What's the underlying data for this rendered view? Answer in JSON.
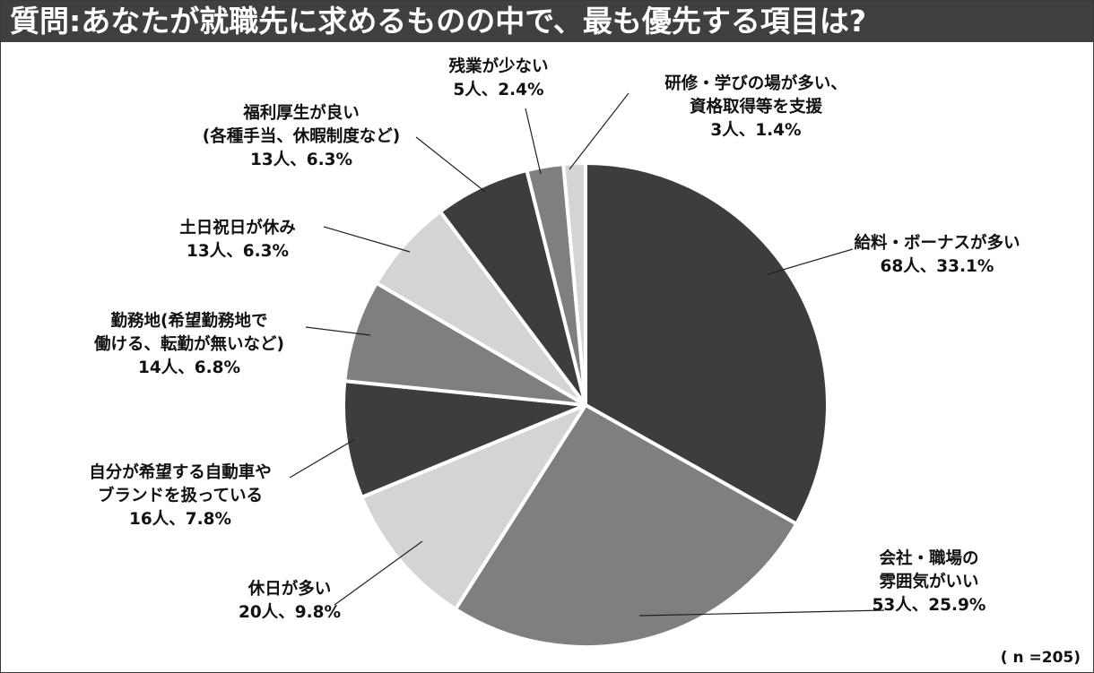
{
  "title": "質問:あなたが就職先に求めるものの中で、最も優先する項目は?",
  "note": "( n =205)",
  "colors": {
    "dark": "#3d3d3d",
    "medium": "#7f7f7f",
    "light": "#d4d4d4",
    "title_bg": "#404040"
  },
  "chart_data": {
    "type": "pie",
    "title": "質問:あなたが就職先に求めるものの中で、最も優先する項目は?",
    "n": 205,
    "slices": [
      {
        "label_lines": [
          "給料・ボーナスが多い"
        ],
        "value_text": "68人、33.1%",
        "count": 68,
        "percent": 33.1,
        "shade": "dark"
      },
      {
        "label_lines": [
          "会社・職場の",
          "雰囲気がいい"
        ],
        "value_text": "53人、25.9%",
        "count": 53,
        "percent": 25.9,
        "shade": "medium"
      },
      {
        "label_lines": [
          "休日が多い"
        ],
        "value_text": "20人、9.8%",
        "count": 20,
        "percent": 9.8,
        "shade": "light"
      },
      {
        "label_lines": [
          "自分が希望する自動車や",
          "ブランドを扱っている"
        ],
        "value_text": "16人、7.8%",
        "count": 16,
        "percent": 7.8,
        "shade": "dark"
      },
      {
        "label_lines": [
          "勤務地(希望勤務地で",
          "働ける、転勤が無いなど)"
        ],
        "value_text": "14人、6.8%",
        "count": 14,
        "percent": 6.8,
        "shade": "medium"
      },
      {
        "label_lines": [
          "土日祝日が休み"
        ],
        "value_text": "13人、6.3%",
        "count": 13,
        "percent": 6.3,
        "shade": "light"
      },
      {
        "label_lines": [
          "福利厚生が良い",
          "(各種手当、休暇制度など)"
        ],
        "value_text": "13人、6.3%",
        "count": 13,
        "percent": 6.3,
        "shade": "dark"
      },
      {
        "label_lines": [
          "残業が少ない"
        ],
        "value_text": "5人、2.4%",
        "count": 5,
        "percent": 2.4,
        "shade": "medium"
      },
      {
        "label_lines": [
          "研修・学びの場が多い、",
          "資格取得等を支援"
        ],
        "value_text": "3人、1.4%",
        "count": 3,
        "percent": 1.4,
        "shade": "light"
      }
    ]
  }
}
